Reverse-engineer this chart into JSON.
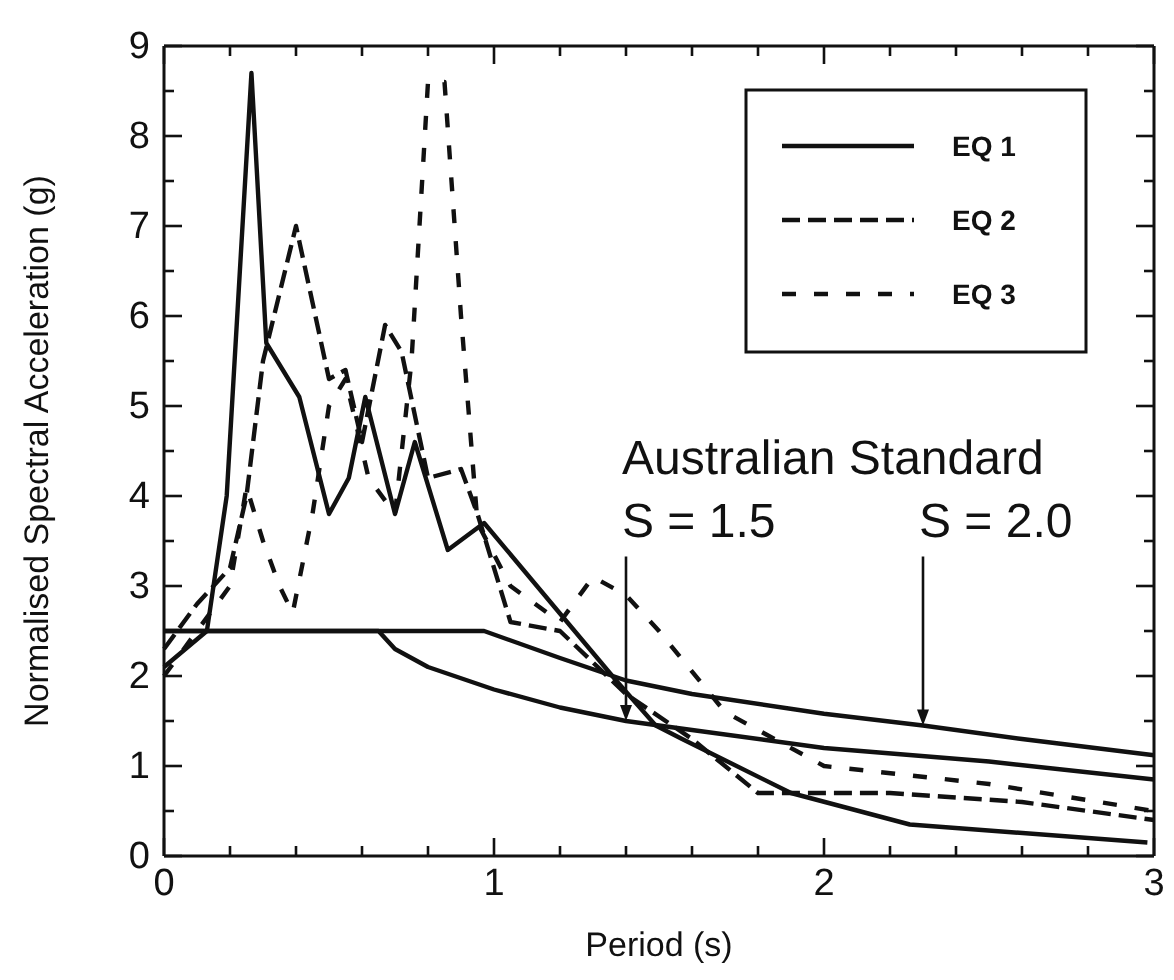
{
  "chart_data": {
    "type": "line",
    "xlabel": "Period (s)",
    "ylabel": "Normalised Spectral Acceleration (g)",
    "xlim": [
      0,
      3
    ],
    "ylim": [
      0,
      9
    ],
    "xticks": [
      0,
      {
        "value": 0.2,
        "label": null
      },
      {
        "value": 0.4,
        "label": null
      },
      {
        "value": 0.6,
        "label": null
      },
      {
        "value": 0.8,
        "label": null
      },
      1,
      {
        "value": 1.2,
        "label": null
      },
      {
        "value": 1.4,
        "label": null
      },
      {
        "value": 1.6,
        "label": null
      },
      {
        "value": 1.8,
        "label": null
      },
      2,
      {
        "value": 2.2,
        "label": null
      },
      {
        "value": 2.4,
        "label": null
      },
      {
        "value": 2.6,
        "label": null
      },
      {
        "value": 2.8,
        "label": null
      },
      3
    ],
    "yticks": [
      0,
      {
        "value": 0.5,
        "label": null
      },
      1,
      {
        "value": 1.5,
        "label": null
      },
      2,
      {
        "value": 2.5,
        "label": null
      },
      3,
      {
        "value": 3.5,
        "label": null
      },
      4,
      {
        "value": 4.5,
        "label": null
      },
      5,
      {
        "value": 5.5,
        "label": null
      },
      6,
      {
        "value": 6.5,
        "label": null
      },
      7,
      {
        "value": 7.5,
        "label": null
      },
      8,
      {
        "value": 8.5,
        "label": null
      },
      9
    ],
    "grid": false,
    "legend": "top right",
    "series": [
      {
        "name": "EQ 1",
        "color": "#111111",
        "line_style": "solid",
        "x": [
          0,
          0.13,
          0.19,
          0.265,
          0.31,
          0.41,
          0.5,
          0.56,
          0.61,
          0.7,
          0.76,
          0.86,
          0.97,
          1.37,
          1.49,
          1.57,
          1.9,
          2.26,
          2.98
        ],
        "values": [
          2.1,
          2.5,
          4.0,
          8.7,
          5.7,
          5.1,
          3.8,
          4.2,
          5.1,
          3.8,
          4.6,
          3.4,
          3.7,
          1.95,
          1.45,
          1.3,
          0.7,
          0.35,
          0.15
        ]
      },
      {
        "name": "EQ 2",
        "color": "#111111",
        "line_style": "dashed",
        "x": [
          0,
          0.1,
          0.2,
          0.25,
          0.3,
          0.4,
          0.5,
          0.55,
          0.6,
          0.67,
          0.72,
          0.8,
          0.9,
          0.95,
          1.05,
          1.2,
          1.4,
          1.6,
          1.8,
          2.2,
          2.6,
          3
        ],
        "values": [
          2.3,
          2.8,
          3.2,
          4.0,
          5.5,
          7.0,
          5.3,
          5.4,
          4.6,
          5.9,
          5.6,
          4.2,
          4.3,
          3.8,
          2.6,
          2.5,
          1.8,
          1.3,
          0.7,
          0.7,
          0.6,
          0.4
        ]
      },
      {
        "name": "EQ 3",
        "color": "#111111",
        "line_style": "dotted",
        "x": [
          0,
          0.1,
          0.2,
          0.25,
          0.3,
          0.35,
          0.39,
          0.45,
          0.5,
          0.55,
          0.62,
          0.7,
          0.75,
          0.8,
          0.85,
          0.9,
          0.95,
          1.05,
          1.2,
          1.3,
          1.4,
          1.5,
          1.7,
          2.0,
          2.5,
          3
        ],
        "values": [
          2.0,
          2.5,
          3.0,
          4.1,
          3.5,
          3.0,
          2.7,
          3.8,
          5.0,
          5.3,
          4.2,
          3.8,
          5.5,
          8.6,
          8.6,
          6.0,
          3.7,
          3.0,
          2.6,
          3.1,
          2.9,
          2.5,
          1.6,
          1.0,
          0.8,
          0.5
        ]
      },
      {
        "color": "#111111",
        "line_style": "solid",
        "x": [
          0,
          0.65,
          0.7,
          0.8,
          1.0,
          1.2,
          1.4,
          1.6,
          2.0,
          2.5,
          3
        ],
        "values": [
          2.5,
          2.5,
          2.3,
          2.1,
          1.85,
          1.65,
          1.5,
          1.4,
          1.2,
          1.05,
          0.85
        ]
      },
      {
        "color": "#111111",
        "line_style": "solid",
        "x": [
          0,
          0.97,
          1.2,
          1.4,
          1.6,
          2.0,
          2.3,
          2.6,
          3
        ],
        "values": [
          2.5,
          2.5,
          2.2,
          1.95,
          1.8,
          1.58,
          1.45,
          1.3,
          1.12
        ]
      }
    ],
    "annotations": [
      "Australian Standard",
      {
        "text": "S = 1.5",
        "x": 1.4,
        "y": 1.5
      },
      {
        "text": "S = 2.0",
        "x": 2.3,
        "y": 1.45
      }
    ]
  }
}
